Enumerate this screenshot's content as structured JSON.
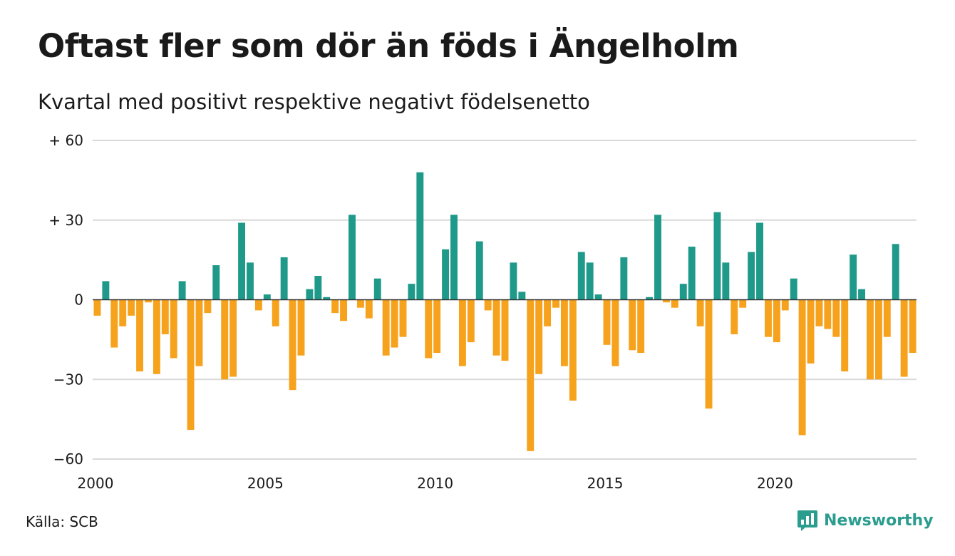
{
  "title": "Oftast fler som dör än föds i Ängelholm",
  "subtitle": "Kvartal med positivt respektive negativt födelsenetto",
  "source": "Källa: SCB",
  "brand": {
    "name": "Newsworthy",
    "icon": "newsworthy-logo-icon"
  },
  "colors": {
    "positive": "#1f9a8a",
    "negative": "#f6a21c",
    "grid": "#d9d9d9",
    "zero": "#333333"
  },
  "chart_data": {
    "type": "bar",
    "title": "Oftast fler som dör än föds i Ängelholm",
    "subtitle": "Kvartal med positivt respektive negativt födelsenetto",
    "xlabel": "",
    "ylabel": "",
    "ylim": [
      -60,
      60
    ],
    "yticks": [
      -60,
      -30,
      0,
      30,
      60
    ],
    "ytick_labels": [
      "−60",
      "−30",
      "0",
      "+ 30",
      "+ 60"
    ],
    "xlim": [
      2000,
      2024.5
    ],
    "xticks": [
      2000,
      2005,
      2010,
      2015,
      2020
    ],
    "xtick_labels": [
      "2000",
      "2005",
      "2010",
      "2015",
      "2020"
    ],
    "period": "quarterly",
    "start": "2000 Q1",
    "grid": true,
    "legend": "none",
    "values": [
      -6,
      7,
      -18,
      -10,
      -6,
      -27,
      -1,
      -28,
      -13,
      -22,
      7,
      -49,
      -25,
      -5,
      13,
      -30,
      -29,
      29,
      14,
      -4,
      2,
      -10,
      16,
      -34,
      -21,
      4,
      9,
      1,
      -5,
      -8,
      32,
      -3,
      -7,
      8,
      -21,
      -18,
      -14,
      6,
      48,
      -22,
      -20,
      19,
      32,
      -25,
      -16,
      22,
      -4,
      -21,
      -23,
      14,
      3,
      -57,
      -28,
      -10,
      -3,
      -25,
      -38,
      18,
      14,
      2,
      -17,
      -25,
      16,
      -19,
      -20,
      1,
      32,
      -1,
      -3,
      6,
      20,
      -10,
      -41,
      33,
      14,
      -13,
      -3,
      18,
      29,
      -14,
      -16,
      -4,
      8,
      -51,
      -24,
      -10,
      -11,
      -14,
      -27,
      17,
      4,
      -30,
      -30,
      -14,
      21,
      -29,
      -20
    ]
  }
}
